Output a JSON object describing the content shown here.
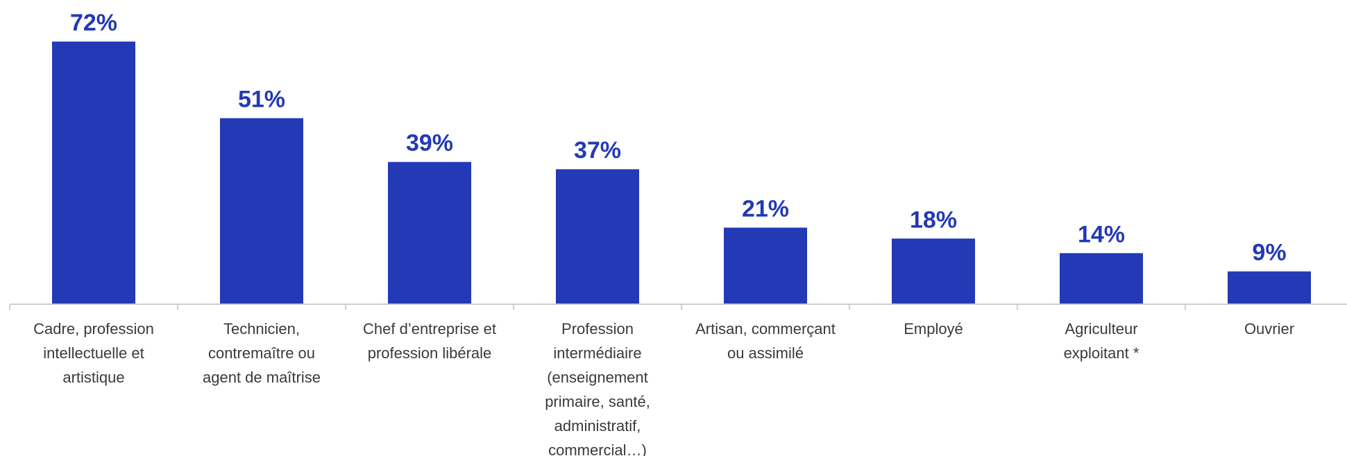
{
  "colors": {
    "bar": "#2339B5",
    "label": "#2339B5",
    "axis": "#cfcfcf",
    "category_text": "#3a3a3a"
  },
  "chart_data": {
    "type": "bar",
    "categories": [
      "Cadre, profession intellectuelle et artistique",
      "Technicien, contremaître ou agent de maîtrise",
      "Chef d’entreprise et profession libérale",
      "Profession intermédiaire (enseignement primaire, santé, administratif, commercial…)",
      "Artisan, commerçant ou assimilé",
      "Employé",
      "Agriculteur exploitant *",
      "Ouvrier"
    ],
    "category_lines": [
      [
        "Cadre, profession",
        "intellectuelle et",
        "artistique"
      ],
      [
        "Technicien,",
        "contremaître ou",
        "agent de maîtrise"
      ],
      [
        "Chef d’entreprise et",
        "profession libérale"
      ],
      [
        "Profession",
        "intermédiaire",
        "(enseignement",
        "primaire, santé,",
        "administratif,",
        "commercial…)"
      ],
      [
        "Artisan, commerçant",
        "ou assimilé"
      ],
      [
        "Employé"
      ],
      [
        "Agriculteur",
        "exploitant *"
      ],
      [
        "Ouvrier"
      ]
    ],
    "values": [
      72,
      51,
      39,
      37,
      21,
      18,
      14,
      9
    ],
    "value_labels": [
      "72%",
      "51%",
      "39%",
      "37%",
      "21%",
      "18%",
      "14%",
      "9%"
    ],
    "ylim": [
      0,
      72
    ],
    "grid": false,
    "legend": "none",
    "title": "",
    "xlabel": "",
    "ylabel": ""
  }
}
